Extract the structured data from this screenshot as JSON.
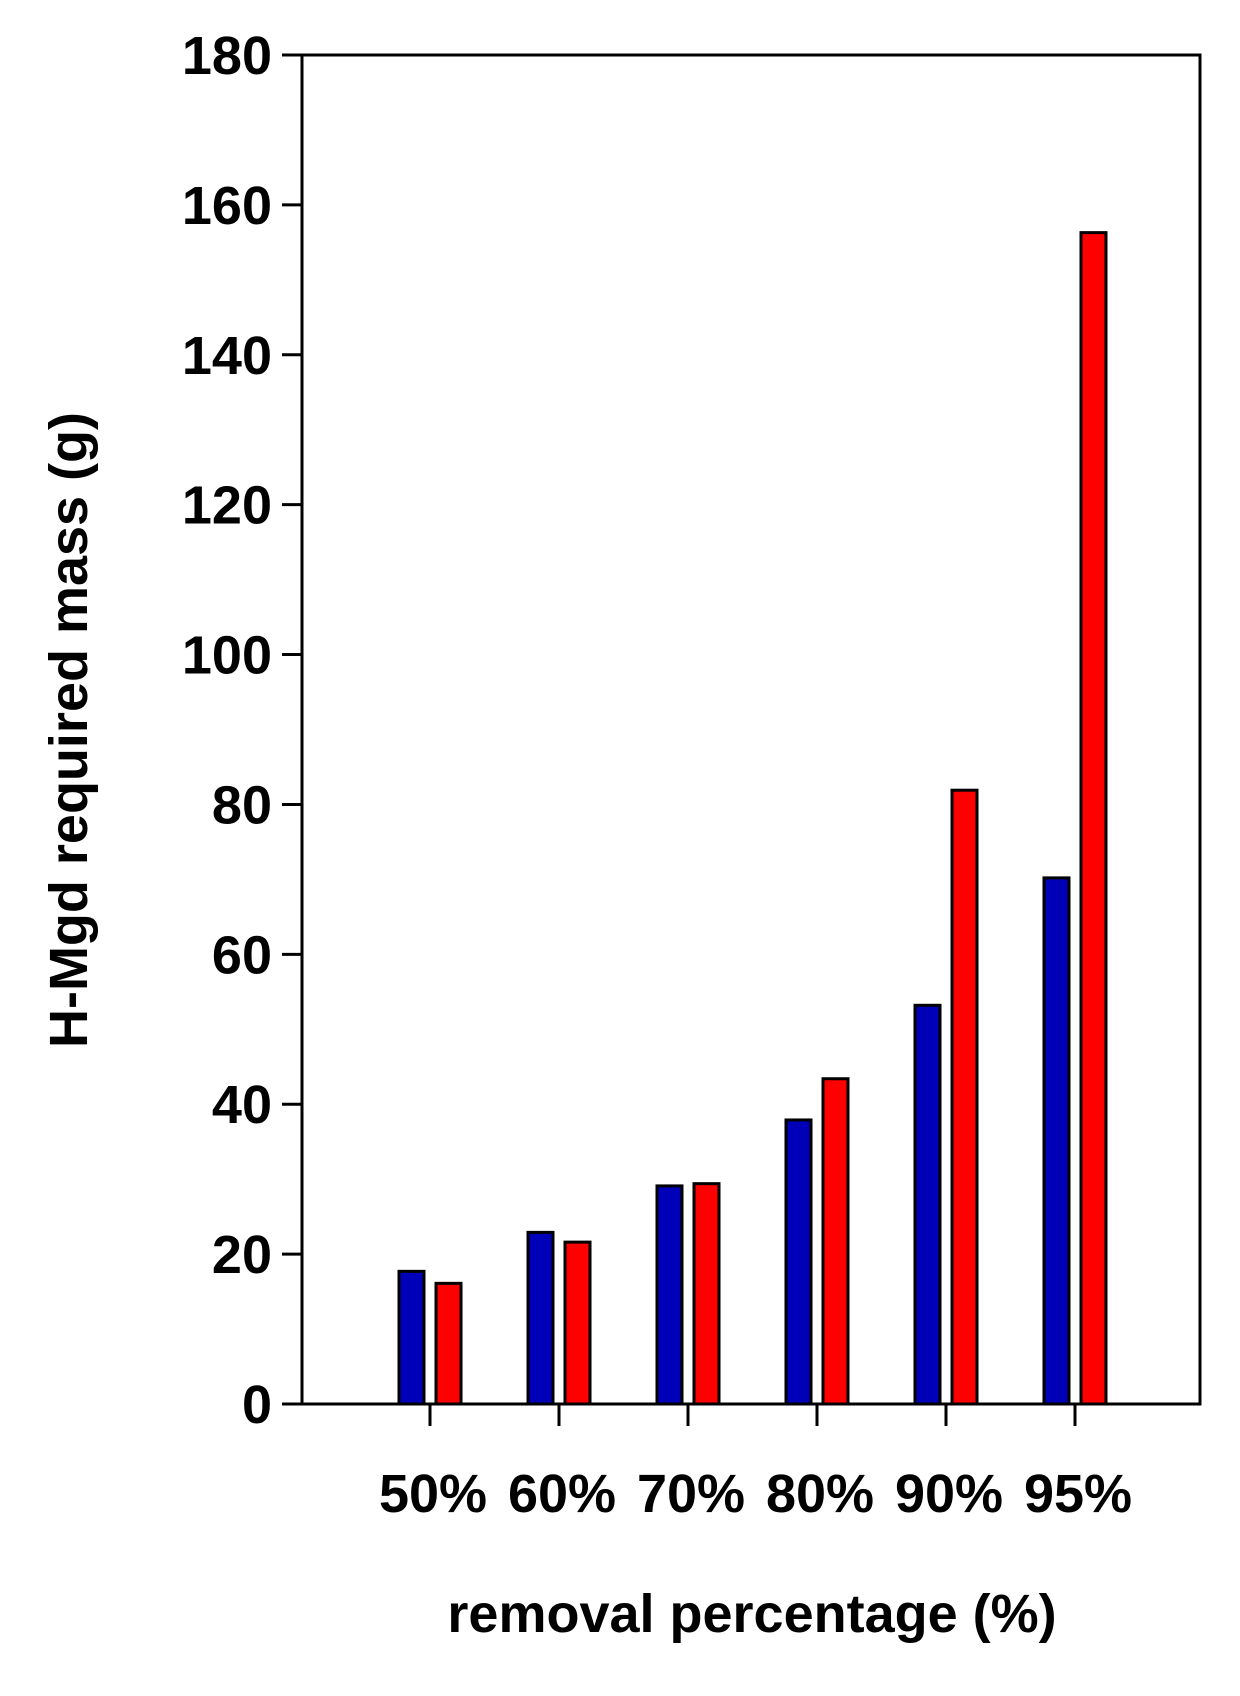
{
  "chart_data": {
    "type": "bar",
    "title": "",
    "xlabel": "removal percentage (%)",
    "ylabel": "H-Mgd required mass (g)",
    "categories": [
      "50%",
      "60%",
      "70%",
      "80%",
      "90%",
      "95%"
    ],
    "series": [
      {
        "color": "#0000b8",
        "values": [
          17.7,
          22.9,
          29.1,
          37.9,
          53.2,
          70.2
        ]
      },
      {
        "color": "#ff0000",
        "values": [
          16.1,
          21.6,
          29.4,
          43.4,
          81.9,
          156.3
        ]
      }
    ],
    "ylim": [
      0,
      180
    ],
    "yticks": [
      "0",
      "20",
      "40",
      "60",
      "80",
      "100",
      "120",
      "140",
      "160",
      "180"
    ],
    "grid": false,
    "legend": "none"
  }
}
